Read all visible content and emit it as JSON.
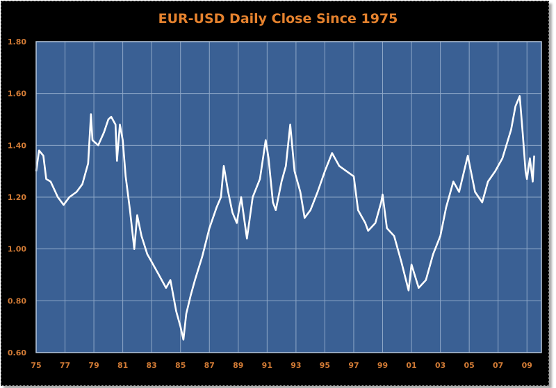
{
  "chart_data": {
    "type": "line",
    "title": "EUR-USD Daily Close Since 1975",
    "xlabel": "",
    "ylabel": "",
    "xlim": [
      1975,
      2010
    ],
    "ylim": [
      0.6,
      1.8
    ],
    "grid": true,
    "legend": "none",
    "colors": {
      "background": "#000000",
      "plot": "#3a6094",
      "grid": "#8fa8c8",
      "line": "#ffffff",
      "text": "#e5822e"
    },
    "yticks": [
      {
        "value": 1.8,
        "label": "1.80"
      },
      {
        "value": 1.6,
        "label": "1.60"
      },
      {
        "value": 1.4,
        "label": "1.40"
      },
      {
        "value": 1.2,
        "label": "1.20"
      },
      {
        "value": 1.0,
        "label": "1.00"
      },
      {
        "value": 0.8,
        "label": "0.80"
      },
      {
        "value": 0.6,
        "label": "0.60"
      }
    ],
    "xticks": [
      {
        "value": 1975,
        "label": "75"
      },
      {
        "value": 1977,
        "label": "77"
      },
      {
        "value": 1979,
        "label": "79"
      },
      {
        "value": 1981,
        "label": "81"
      },
      {
        "value": 1983,
        "label": "83"
      },
      {
        "value": 1985,
        "label": "85"
      },
      {
        "value": 1987,
        "label": "87"
      },
      {
        "value": 1989,
        "label": "89"
      },
      {
        "value": 1991,
        "label": "91"
      },
      {
        "value": 1993,
        "label": "93"
      },
      {
        "value": 1995,
        "label": "95"
      },
      {
        "value": 1997,
        "label": "97"
      },
      {
        "value": 1999,
        "label": "99"
      },
      {
        "value": 2001,
        "label": "01"
      },
      {
        "value": 2003,
        "label": "03"
      },
      {
        "value": 2005,
        "label": "05"
      },
      {
        "value": 2007,
        "label": "07"
      },
      {
        "value": 2009,
        "label": "09"
      }
    ],
    "series": [
      {
        "name": "EUR-USD",
        "x": [
          1975.0,
          1975.2,
          1975.5,
          1975.7,
          1976.0,
          1976.5,
          1976.9,
          1977.3,
          1977.8,
          1978.2,
          1978.6,
          1978.8,
          1978.9,
          1979.3,
          1979.7,
          1980.0,
          1980.2,
          1980.5,
          1980.6,
          1980.8,
          1981.0,
          1981.2,
          1981.5,
          1981.8,
          1982.0,
          1982.3,
          1982.7,
          1983.0,
          1983.5,
          1984.0,
          1984.3,
          1984.7,
          1985.0,
          1985.2,
          1985.4,
          1985.7,
          1986.0,
          1986.5,
          1987.0,
          1987.5,
          1987.8,
          1988.0,
          1988.3,
          1988.6,
          1988.9,
          1989.2,
          1989.6,
          1990.0,
          1990.5,
          1990.9,
          1991.1,
          1991.4,
          1991.6,
          1992.0,
          1992.3,
          1992.6,
          1992.9,
          1993.3,
          1993.6,
          1994.0,
          1994.5,
          1995.0,
          1995.5,
          1996.0,
          1996.5,
          1997.0,
          1997.3,
          1997.8,
          1998.0,
          1998.5,
          1998.9,
          1999.0,
          1999.3,
          1999.8,
          2000.3,
          2000.8,
          2001.0,
          2001.5,
          2002.0,
          2002.5,
          2003.0,
          2003.4,
          2003.9,
          2004.3,
          2004.9,
          2005.4,
          2005.9,
          2006.3,
          2006.8,
          2007.3,
          2007.9,
          2008.2,
          2008.5,
          2008.7,
          2008.9,
          2009.0,
          2009.2,
          2009.4,
          2009.5
        ],
        "y": [
          1.3,
          1.38,
          1.36,
          1.27,
          1.26,
          1.2,
          1.17,
          1.2,
          1.22,
          1.25,
          1.33,
          1.52,
          1.42,
          1.4,
          1.45,
          1.5,
          1.51,
          1.48,
          1.34,
          1.48,
          1.42,
          1.28,
          1.15,
          1.0,
          1.13,
          1.05,
          0.98,
          0.95,
          0.9,
          0.85,
          0.88,
          0.76,
          0.7,
          0.65,
          0.75,
          0.82,
          0.88,
          0.97,
          1.08,
          1.16,
          1.2,
          1.32,
          1.22,
          1.14,
          1.1,
          1.2,
          1.04,
          1.2,
          1.27,
          1.42,
          1.35,
          1.18,
          1.15,
          1.26,
          1.32,
          1.48,
          1.3,
          1.22,
          1.12,
          1.15,
          1.22,
          1.3,
          1.37,
          1.32,
          1.3,
          1.28,
          1.15,
          1.1,
          1.07,
          1.1,
          1.18,
          1.21,
          1.08,
          1.05,
          0.95,
          0.84,
          0.94,
          0.85,
          0.88,
          0.98,
          1.05,
          1.16,
          1.26,
          1.22,
          1.36,
          1.22,
          1.18,
          1.26,
          1.3,
          1.35,
          1.46,
          1.55,
          1.59,
          1.45,
          1.3,
          1.27,
          1.35,
          1.26,
          1.36
        ]
      }
    ]
  }
}
